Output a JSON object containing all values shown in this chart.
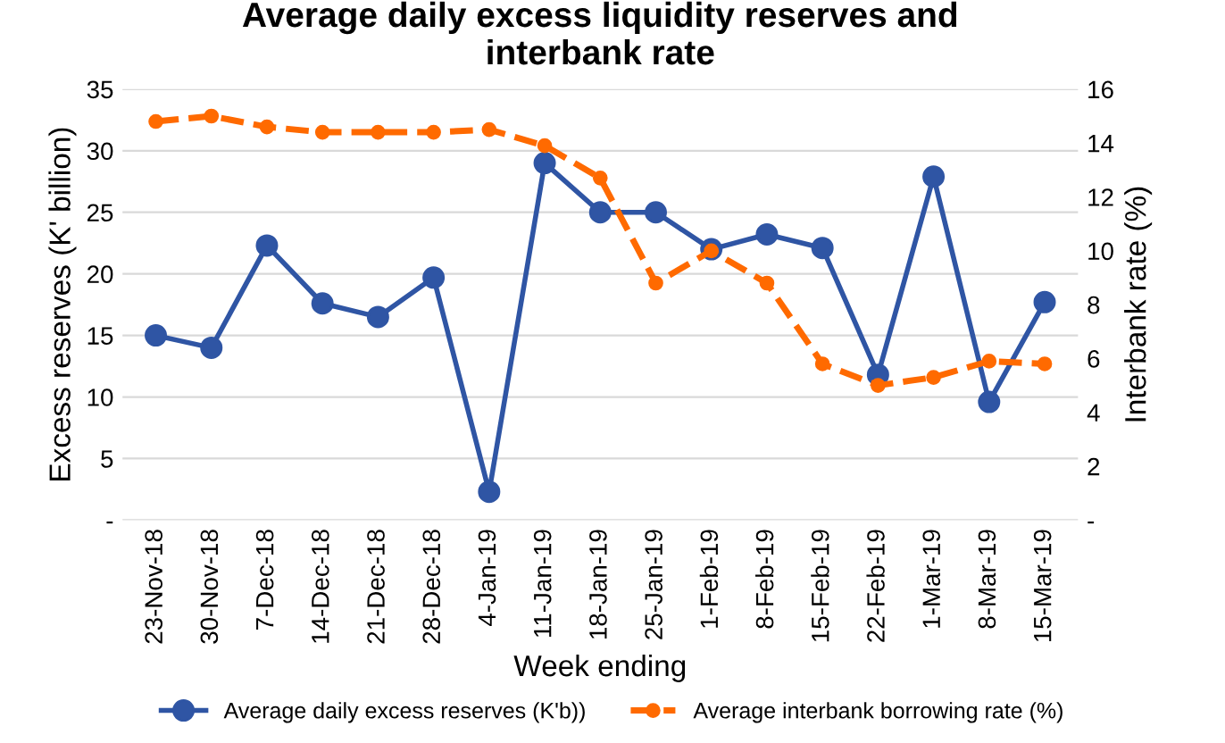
{
  "chart_data": {
    "type": "line",
    "title": "Average daily excess liquidity reserves and\ninterbank rate",
    "xlabel": "Week ending",
    "ylabel": "Excess reserves (K' billion)",
    "y2label": "Interbank rate (%)",
    "categories": [
      "23-Nov-18",
      "30-Nov-18",
      "7-Dec-18",
      "14-Dec-18",
      "21-Dec-18",
      "28-Dec-18",
      "4-Jan-19",
      "11-Jan-19",
      "18-Jan-19",
      "25-Jan-19",
      "1-Feb-19",
      "8-Feb-19",
      "15-Feb-19",
      "22-Feb-19",
      "1-Mar-19",
      "8-Mar-19",
      "15-Mar-19"
    ],
    "series": [
      {
        "name": "Average daily excess reserves (K'b))",
        "color": "#2f55a4",
        "line_style": "solid",
        "values": [
          15,
          14,
          22.3,
          17.6,
          16.5,
          19.7,
          2.3,
          29,
          25,
          25,
          22,
          23.2,
          22.1,
          11.8,
          27.9,
          9.6,
          17.7
        ]
      },
      {
        "name": "Average interbank borrowing rate (%)",
        "color": "#ff6a00",
        "line_style": "dashed",
        "axis": "y2",
        "values": [
          14.8,
          15.0,
          14.6,
          14.4,
          14.4,
          14.4,
          14.5,
          13.9,
          12.7,
          8.8,
          10.0,
          8.8,
          5.8,
          5.0,
          5.3,
          5.9,
          5.8
        ]
      }
    ],
    "ylim": [
      0,
      35
    ],
    "yticks": [
      {
        "value": 0,
        "label": "-"
      },
      5,
      10,
      15,
      20,
      25,
      30,
      35
    ],
    "y2lim": [
      0,
      16
    ],
    "y2ticks": [
      {
        "value": 0,
        "label": "-"
      },
      2,
      4,
      6,
      8,
      10,
      12,
      14,
      16
    ],
    "grid": "y",
    "legend": "bottom",
    "marker": "circle"
  }
}
